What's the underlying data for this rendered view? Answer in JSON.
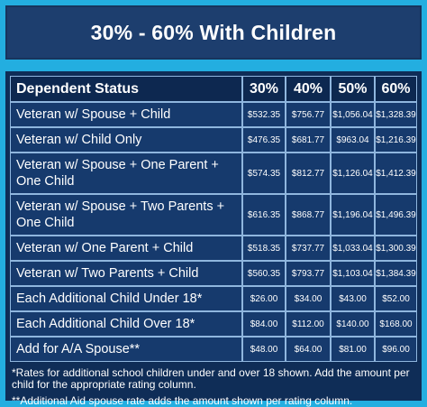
{
  "title": "30% - 60% With Children",
  "table": {
    "headers": [
      "Dependent Status",
      "30%",
      "40%",
      "50%",
      "60%"
    ],
    "rows": [
      {
        "label": "Veteran w/ Spouse + Child",
        "values": [
          "$532.35",
          "$756.77",
          "$1,056.04",
          "$1,328.39"
        ]
      },
      {
        "label": "Veteran w/ Child Only",
        "values": [
          "$476.35",
          "$681.77",
          "$963.04",
          "$1,216.39"
        ]
      },
      {
        "label": "Veteran w/ Spouse + One Parent + One Child",
        "values": [
          "$574.35",
          "$812.77",
          "$1,126.04",
          "$1,412.39"
        ]
      },
      {
        "label": "Veteran w/ Spouse + Two Parents + One Child",
        "values": [
          "$616.35",
          "$868.77",
          "$1,196.04",
          "$1,496.39"
        ]
      },
      {
        "label": "Veteran w/ One Parent + Child",
        "values": [
          "$518.35",
          "$737.77",
          "$1,033.04",
          "$1,300.39"
        ]
      },
      {
        "label": "Veteran w/ Two Parents + Child",
        "values": [
          "$560.35",
          "$793.77",
          "$1,103.04",
          "$1,384.39"
        ]
      },
      {
        "label": "Each Additional Child Under 18*",
        "values": [
          "$26.00",
          "$34.00",
          "$43.00",
          "$52.00"
        ]
      },
      {
        "label": "Each Additional Child Over 18*",
        "values": [
          "$84.00",
          "$112.00",
          "$140.00",
          "$168.00"
        ]
      },
      {
        "label": "Add for A/A Spouse**",
        "values": [
          "$48.00",
          "$64.00",
          "$81.00",
          "$96.00"
        ]
      }
    ]
  },
  "notes": [
    "*Rates for additional school children under and over 18 shown. Add the amount per child for the appropriate rating column.",
    "**Additional Aid spouse rate adds the amount shown per rating column."
  ]
}
